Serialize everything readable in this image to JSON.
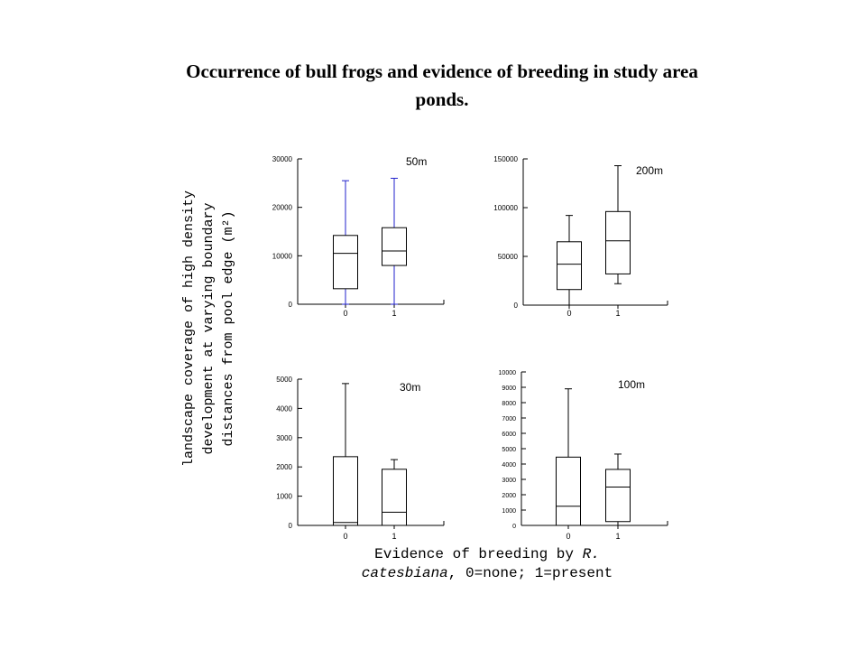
{
  "title_line1": "Occurrence of bull frogs and evidence of breeding in study area",
  "title_line2": "ponds.",
  "ylabel_lines": [
    "landscape coverage of high density",
    "development at varying boundary",
    "distances from pool edge (m²)"
  ],
  "xlabel": {
    "part1": "Evidence of breeding by ",
    "part2_italic_a": "R.",
    "part3_italic_b": "catesbiana",
    "part4": ", 0=none; 1=present"
  },
  "chart_data": [
    {
      "type": "boxplot",
      "panel_label": "50m",
      "categories": [
        "0",
        "1"
      ],
      "ylim": [
        0,
        30000
      ],
      "yticks": [
        0,
        10000,
        20000,
        30000
      ],
      "tick_labels": [
        "0",
        "10000",
        "20000",
        "30000"
      ],
      "boxes": [
        {
          "category": "0",
          "min": 0,
          "q1": 3200,
          "median": 10500,
          "q3": 14200,
          "max": 25500
        },
        {
          "category": "1",
          "min": 0,
          "q1": 8000,
          "median": 11000,
          "q3": 15800,
          "max": 26000
        }
      ],
      "whisker_color": "#2222cc"
    },
    {
      "type": "boxplot",
      "panel_label": "200m",
      "categories": [
        "0",
        "1"
      ],
      "ylim": [
        0,
        150000
      ],
      "yticks": [
        0,
        50000,
        100000,
        150000
      ],
      "tick_labels": [
        "0",
        "50000",
        "100000",
        "150000"
      ],
      "boxes": [
        {
          "category": "0",
          "min": 0,
          "q1": 16000,
          "median": 42000,
          "q3": 65000,
          "max": 92000
        },
        {
          "category": "1",
          "min": 22000,
          "q1": 32000,
          "median": 66000,
          "q3": 96000,
          "max": 143000
        }
      ],
      "whisker_color": "#000000"
    },
    {
      "type": "boxplot",
      "panel_label": "30m",
      "categories": [
        "0",
        "1"
      ],
      "ylim": [
        0,
        5000
      ],
      "yticks": [
        0,
        1000,
        2000,
        3000,
        4000,
        5000
      ],
      "tick_labels": [
        "0",
        "1000",
        "2000",
        "3000",
        "4000",
        "5000"
      ],
      "boxes": [
        {
          "category": "0",
          "min": 0,
          "q1": 0,
          "median": 100,
          "q3": 2350,
          "max": 4850
        },
        {
          "category": "1",
          "min": 0,
          "q1": 0,
          "median": 450,
          "q3": 1920,
          "max": 2250
        }
      ],
      "whisker_color": "#000000"
    },
    {
      "type": "boxplot",
      "panel_label": "100m",
      "categories": [
        "0",
        "1"
      ],
      "ylim": [
        0,
        10000
      ],
      "yticks": [
        0,
        1000,
        2000,
        3000,
        4000,
        5000,
        6000,
        7000,
        8000,
        9000,
        10000
      ],
      "tick_labels": [
        "0",
        "1000",
        "2000",
        "3000",
        "4000",
        "5000",
        "6000",
        "7000",
        "8000",
        "9000",
        "10000"
      ],
      "boxes": [
        {
          "category": "0",
          "min": 0,
          "q1": 0,
          "median": 1250,
          "q3": 4450,
          "max": 8900
        },
        {
          "category": "1",
          "min": 0,
          "q1": 250,
          "median": 2500,
          "q3": 3650,
          "max": 4650
        }
      ],
      "whisker_color": "#000000"
    }
  ]
}
